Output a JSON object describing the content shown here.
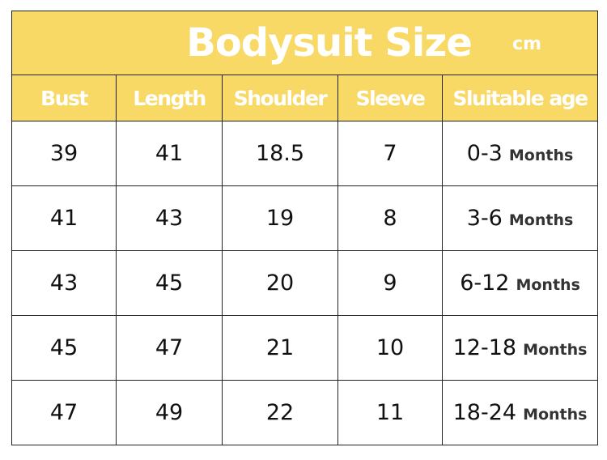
{
  "title": "Bodysuit Size",
  "unit": "cm",
  "columns": [
    "Bust",
    "Length",
    "Shoulder",
    "Sleeve",
    "Sluitable age"
  ],
  "rows": [
    {
      "bust": "39",
      "length": "41",
      "shoulder": "18.5",
      "sleeve": "7",
      "age": "0-3",
      "age_unit": "Months"
    },
    {
      "bust": "41",
      "length": "43",
      "shoulder": "19",
      "sleeve": "8",
      "age": "3-6",
      "age_unit": "Months"
    },
    {
      "bust": "43",
      "length": "45",
      "shoulder": "20",
      "sleeve": "9",
      "age": "6-12",
      "age_unit": "Months"
    },
    {
      "bust": "45",
      "length": "47",
      "shoulder": "21",
      "sleeve": "10",
      "age": "12-18",
      "age_unit": "Months"
    },
    {
      "bust": "47",
      "length": "49",
      "shoulder": "22",
      "sleeve": "11",
      "age": "18-24",
      "age_unit": "Months"
    }
  ],
  "colors": {
    "header_bg": "#f9d965",
    "header_text": "#ffffff",
    "border": "#222222"
  }
}
